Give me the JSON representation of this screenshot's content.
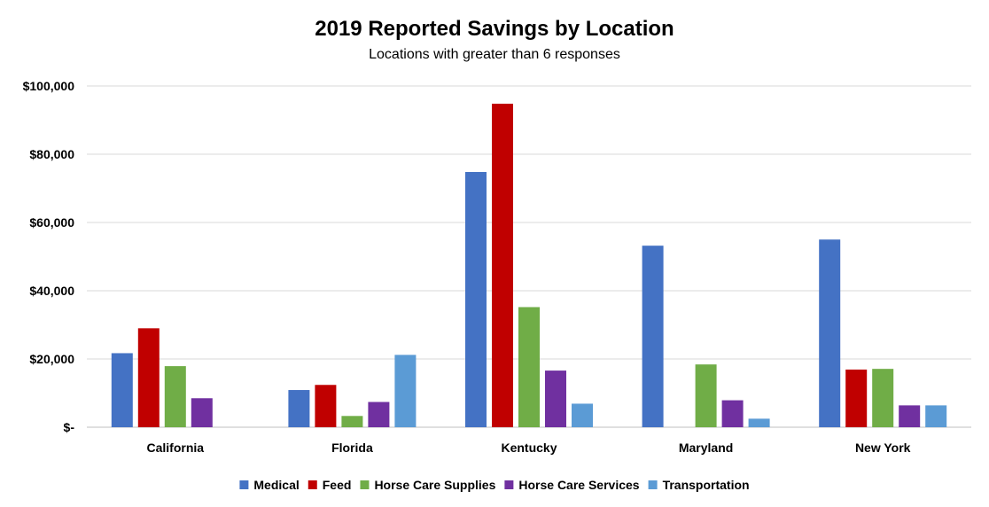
{
  "chart_data": {
    "type": "bar",
    "title": "2019 Reported Savings by Location",
    "subtitle": "Locations with greater than 6 responses",
    "xlabel": "",
    "ylabel": "",
    "ylim": [
      0,
      100000
    ],
    "yticks": [
      0,
      20000,
      40000,
      60000,
      80000,
      100000
    ],
    "ytick_labels": [
      "$-",
      "$20,000",
      "$40,000",
      "$60,000",
      "$80,000",
      "$100,000"
    ],
    "grid": true,
    "legend_position": "bottom",
    "categories": [
      "California",
      "Florida",
      "Kentucky",
      "Maryland",
      "New York"
    ],
    "series": [
      {
        "name": "Medical",
        "color": "#4472C4",
        "values": [
          21700,
          10900,
          74800,
          53200,
          55000
        ]
      },
      {
        "name": "Feed",
        "color": "#C00000",
        "values": [
          29000,
          12400,
          94800,
          0,
          16900
        ]
      },
      {
        "name": "Horse Care Supplies",
        "color": "#70AD47",
        "values": [
          17900,
          3300,
          35200,
          18400,
          17100
        ]
      },
      {
        "name": "Horse Care Services",
        "color": "#7030A0",
        "values": [
          8500,
          7400,
          16600,
          7900,
          6400
        ]
      },
      {
        "name": "Transportation",
        "color": "#5B9BD5",
        "values": [
          0,
          21200,
          6900,
          2500,
          6400
        ]
      }
    ]
  }
}
